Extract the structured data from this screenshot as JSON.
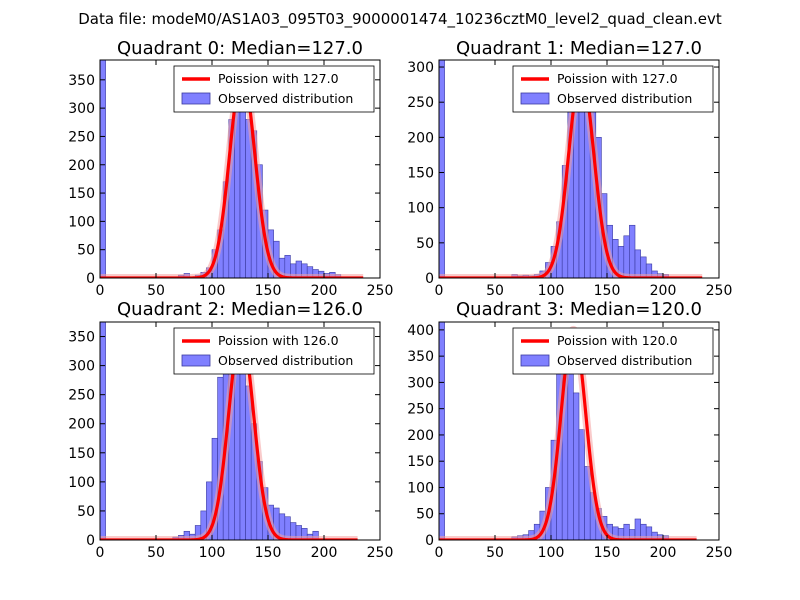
{
  "figure": {
    "suptitle": "Data file: modeM0/AS1A03_095T03_9000001474_10236cztM0_level2_quad_clean.evt"
  },
  "colors": {
    "bar_fill": "#8080ff",
    "bar_edge": "#3a3aa0",
    "curve": "#ff0000",
    "curve_glow": "#f4a0a0",
    "frame": "#000000"
  },
  "chart_data": [
    {
      "type": "bar",
      "title": "Quadrant 0: Median=127.0",
      "median": 127.0,
      "xlim": [
        0,
        250
      ],
      "ylim": [
        0,
        385
      ],
      "xticks": [
        0,
        50,
        100,
        150,
        200,
        250
      ],
      "yticks": [
        0,
        50,
        100,
        150,
        200,
        250,
        300,
        350
      ],
      "legend": {
        "position": "top-right",
        "entries": [
          "Poission with 127.0",
          "Observed distribution"
        ]
      },
      "bins": {
        "start": 0,
        "width": 5,
        "counts": [
          385,
          0,
          0,
          0,
          0,
          0,
          0,
          0,
          0,
          0,
          0,
          0,
          0,
          0,
          5,
          8,
          2,
          5,
          10,
          18,
          50,
          85,
          170,
          280,
          350,
          315,
          280,
          260,
          200,
          120,
          85,
          65,
          35,
          40,
          25,
          30,
          25,
          20,
          15,
          12,
          8,
          10,
          6,
          0,
          0,
          0,
          0,
          0
        ]
      },
      "poisson": {
        "lambda": 127.0,
        "peak": 360,
        "x_range": [
          0,
          235
        ]
      }
    },
    {
      "type": "bar",
      "title": "Quadrant 1: Median=127.0",
      "median": 127.0,
      "xlim": [
        0,
        250
      ],
      "ylim": [
        0,
        310
      ],
      "xticks": [
        0,
        50,
        100,
        150,
        200,
        250
      ],
      "yticks": [
        0,
        50,
        100,
        150,
        200,
        250,
        300
      ],
      "legend": {
        "position": "top-right",
        "entries": [
          "Poission with 127.0",
          "Observed distribution"
        ]
      },
      "bins": {
        "start": 0,
        "width": 5,
        "counts": [
          310,
          0,
          0,
          0,
          0,
          0,
          0,
          0,
          0,
          0,
          0,
          0,
          0,
          5,
          3,
          4,
          3,
          5,
          10,
          22,
          45,
          80,
          160,
          245,
          285,
          290,
          275,
          265,
          200,
          120,
          75,
          55,
          45,
          60,
          75,
          40,
          30,
          20,
          10,
          6,
          5,
          0,
          0,
          0,
          0,
          0,
          0,
          0
        ]
      },
      "poisson": {
        "lambda": 127.0,
        "peak": 290,
        "x_range": [
          0,
          235
        ]
      }
    },
    {
      "type": "bar",
      "title": "Quadrant 2: Median=126.0",
      "median": 126.0,
      "xlim": [
        0,
        250
      ],
      "ylim": [
        0,
        375
      ],
      "xticks": [
        0,
        50,
        100,
        150,
        200,
        250
      ],
      "yticks": [
        0,
        50,
        100,
        150,
        200,
        250,
        300,
        350
      ],
      "legend": {
        "position": "top-right",
        "entries": [
          "Poission with 126.0",
          "Observed distribution"
        ]
      },
      "bins": {
        "start": 0,
        "width": 5,
        "counts": [
          375,
          0,
          0,
          0,
          0,
          0,
          0,
          0,
          0,
          0,
          0,
          0,
          0,
          5,
          8,
          15,
          10,
          25,
          50,
          100,
          175,
          280,
          325,
          360,
          350,
          340,
          265,
          200,
          135,
          90,
          60,
          55,
          45,
          40,
          30,
          25,
          20,
          10,
          15,
          0,
          0,
          0,
          0,
          0,
          0,
          0,
          0,
          0
        ]
      },
      "poisson": {
        "lambda": 126.0,
        "peak": 355,
        "x_range": [
          0,
          230
        ]
      }
    },
    {
      "type": "bar",
      "title": "Quadrant 3: Median=120.0",
      "median": 120.0,
      "xlim": [
        0,
        250
      ],
      "ylim": [
        0,
        415
      ],
      "xticks": [
        0,
        50,
        100,
        150,
        200,
        250
      ],
      "yticks": [
        0,
        50,
        100,
        150,
        200,
        250,
        300,
        350,
        400
      ],
      "legend": {
        "position": "top-right",
        "entries": [
          "Poission with 120.0",
          "Observed distribution"
        ]
      },
      "bins": {
        "start": 0,
        "width": 5,
        "counts": [
          415,
          0,
          0,
          0,
          0,
          0,
          0,
          0,
          0,
          0,
          0,
          0,
          0,
          6,
          8,
          10,
          18,
          30,
          55,
          100,
          190,
          320,
          360,
          340,
          280,
          210,
          140,
          90,
          60,
          45,
          30,
          25,
          22,
          30,
          20,
          40,
          30,
          25,
          15,
          10,
          8,
          0,
          0,
          0,
          0,
          0,
          0,
          0
        ]
      },
      "poisson": {
        "lambda": 120.0,
        "peak": 400,
        "x_range": [
          0,
          230
        ]
      }
    }
  ]
}
